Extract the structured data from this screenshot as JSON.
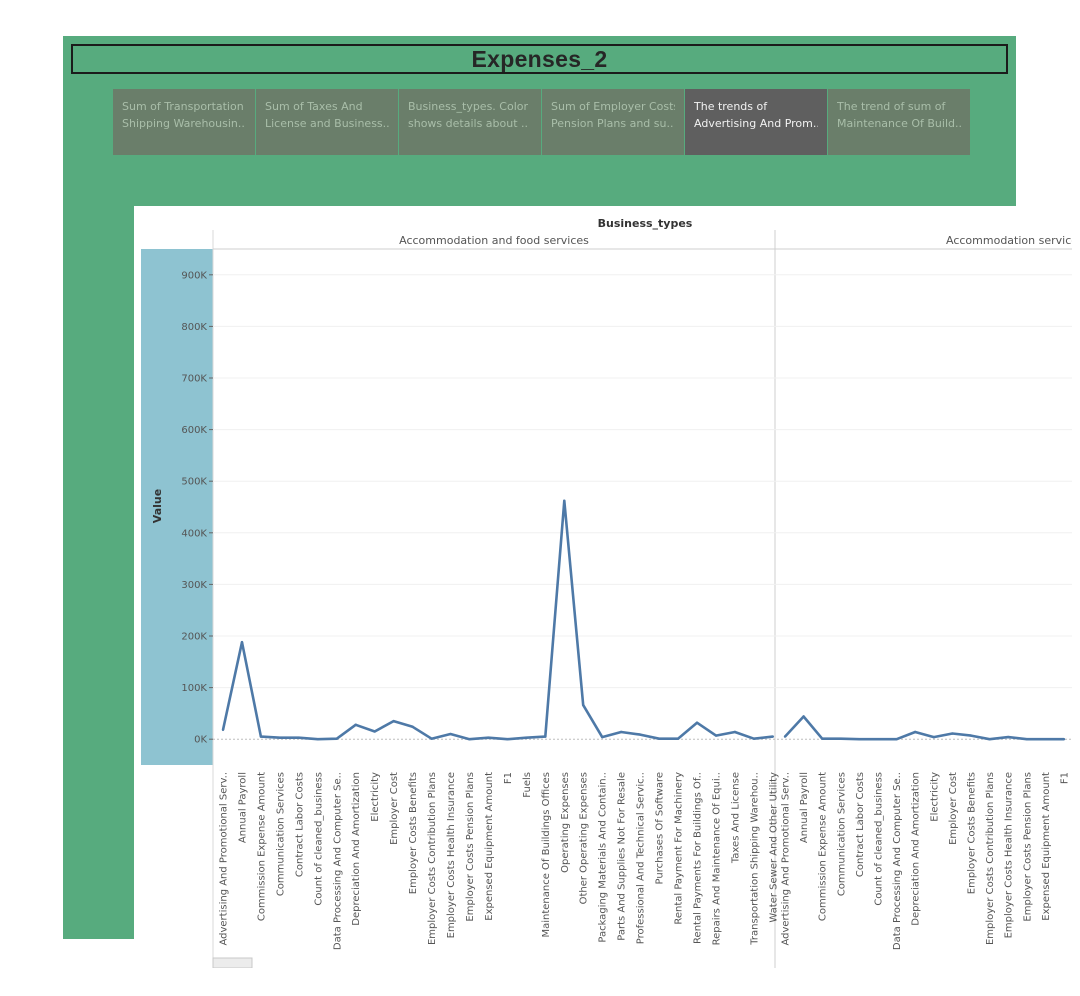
{
  "dashboard": {
    "title": "Expenses_2",
    "colors": {
      "background": "#57ab7e",
      "tab": "#6a7e6a",
      "tab_active": "#5f5f5f",
      "axis_highlight": "#8ec3d1",
      "line": "#4e79a7"
    },
    "tabs": [
      {
        "line1": "Sum of Transportation",
        "line2": "Shipping Warehousin..",
        "active": false
      },
      {
        "line1": "Sum of Taxes And",
        "line2": "License and Business..",
        "active": false
      },
      {
        "line1": "Business_types.  Color",
        "line2": "shows details about ..",
        "active": false
      },
      {
        "line1": "Sum of Employer Costs",
        "line2": "Pension Plans and su..",
        "active": false
      },
      {
        "line1": "The trends of",
        "line2": "Advertising And Prom..",
        "active": true
      },
      {
        "line1": "The trend of sum of",
        "line2": "Maintenance Of Build..",
        "active": false
      }
    ]
  },
  "chart_data": {
    "type": "line",
    "title": "",
    "column_header": "Business_types",
    "ylabel": "Value",
    "ylim": [
      -50000,
      950000
    ],
    "y_ticks": [
      0,
      100000,
      200000,
      300000,
      400000,
      500000,
      600000,
      700000,
      800000,
      900000
    ],
    "y_tick_labels": [
      "0K",
      "100K",
      "200K",
      "300K",
      "400K",
      "500K",
      "600K",
      "700K",
      "800K",
      "900K"
    ],
    "grid": true,
    "panes": [
      {
        "header": "Accommodation and food services",
        "categories": [
          "Advertising And Promotional Serv..",
          "Annual Payroll",
          "Commission Expense Amount",
          "Communication Services",
          "Contract Labor Costs",
          "Count of cleaned_business",
          "Data Processing And Computer Se..",
          "Depreciation And Amortization",
          "Electricity",
          "Employer Cost",
          "Employer Costs Benefits",
          "Employer Costs Contribution Plans",
          "Employer Costs Health Insurance",
          "Employer Costs Pension Plans",
          "Expensed Equipment Amount",
          "F1",
          "Fuels",
          "Maintenance Of Buildings Offices",
          "Operating Expenses",
          "Other Operating Expenses",
          "Packaging Materials And Contain..",
          "Parts And Supplies Not For Resale",
          "Professional And Technical Servic..",
          "Purchases Of Software",
          "Rental Payment For Machinery",
          "Rental Payments For Buildings Of..",
          "Repairs And Maintenance Of Equi..",
          "Taxes And License",
          "Transportation Shipping Warehou..",
          "Water Sewer And Other Utility"
        ],
        "values": [
          18000,
          188000,
          5000,
          3000,
          3000,
          0,
          1000,
          28000,
          15000,
          35000,
          24000,
          1000,
          10000,
          0,
          3000,
          0,
          3000,
          5000,
          462000,
          66000,
          4000,
          14000,
          9000,
          1000,
          1000,
          32000,
          7000,
          14000,
          1000,
          5000
        ]
      },
      {
        "header": "Accommodation service",
        "categories": [
          "Advertising And Promotional Serv..",
          "Annual Payroll",
          "Commission Expense Amount",
          "Communication Services",
          "Contract Labor Costs",
          "Count of cleaned_business",
          "Data Processing And Computer Se..",
          "Depreciation And Amortization",
          "Electricity",
          "Employer Cost",
          "Employer Costs Benefits",
          "Employer Costs Contribution Plans",
          "Employer Costs Health Insurance",
          "Employer Costs Pension Plans",
          "Expensed Equipment Amount",
          "F1"
        ],
        "values": [
          5000,
          44000,
          1000,
          1000,
          0,
          0,
          0,
          14000,
          4000,
          11000,
          7000,
          0,
          4000,
          0,
          0,
          0
        ]
      }
    ]
  }
}
